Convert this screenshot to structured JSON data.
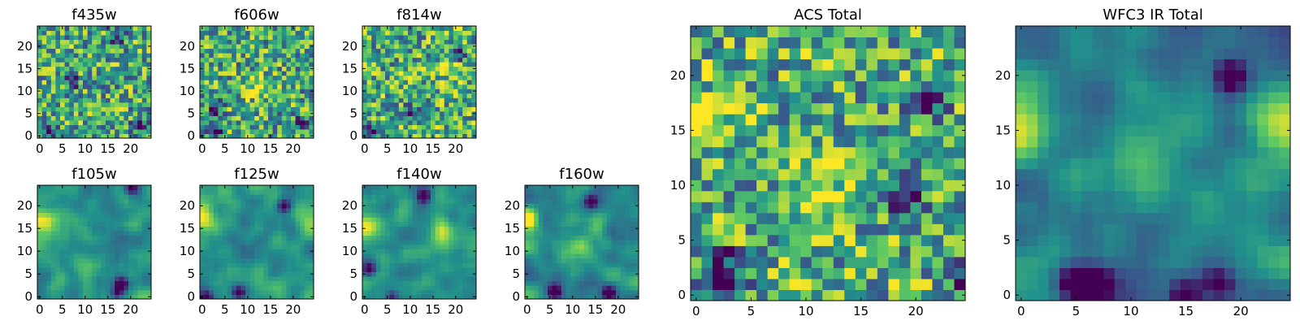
{
  "figure": {
    "colormap": "viridis",
    "colormap_stops": [
      "#440154",
      "#3b528b",
      "#21918c",
      "#5ec962",
      "#fde725"
    ]
  },
  "chart_data": [
    {
      "type": "heatmap",
      "title": "f435w",
      "grid_size": 25,
      "xticks": [
        0,
        5,
        10,
        15,
        20
      ],
      "yticks": [
        0,
        5,
        10,
        15,
        20
      ],
      "xlim": [
        0,
        25
      ],
      "ylim": [
        0,
        25
      ],
      "grid": false,
      "texture": "noisy",
      "mean_level": 0.6,
      "hotspots": [],
      "lowspots": [
        [
          3,
          1,
          0.3
        ],
        [
          22,
          2,
          0.3
        ],
        [
          7,
          12,
          0.3
        ],
        [
          17,
          22,
          0.3
        ]
      ]
    },
    {
      "type": "heatmap",
      "title": "f606w",
      "grid_size": 25,
      "xticks": [
        0,
        5,
        10,
        15,
        20
      ],
      "yticks": [
        0,
        5,
        10,
        15,
        20
      ],
      "xlim": [
        0,
        25
      ],
      "ylim": [
        0,
        25
      ],
      "grid": false,
      "texture": "noisy",
      "mean_level": 0.6,
      "hotspots": [
        [
          11,
          11,
          0.15
        ]
      ],
      "lowspots": [
        [
          3,
          1,
          0.35
        ],
        [
          3,
          6,
          0.3
        ],
        [
          22,
          3,
          0.3
        ]
      ]
    },
    {
      "type": "heatmap",
      "title": "f814w",
      "grid_size": 25,
      "xticks": [
        0,
        5,
        10,
        15,
        20
      ],
      "yticks": [
        0,
        5,
        10,
        15,
        20
      ],
      "xlim": [
        0,
        25
      ],
      "ylim": [
        0,
        25
      ],
      "grid": false,
      "texture": "noisy",
      "mean_level": 0.62,
      "hotspots": [
        [
          20,
          15,
          0.2
        ]
      ],
      "lowspots": [
        [
          1,
          1,
          0.3
        ],
        [
          10,
          5,
          0.3
        ],
        [
          21,
          18,
          0.3
        ]
      ]
    },
    {
      "type": "heatmap",
      "title": "f105w",
      "grid_size": 25,
      "xticks": [
        0,
        5,
        10,
        15,
        20
      ],
      "yticks": [
        0,
        5,
        10,
        15,
        20
      ],
      "xlim": [
        0,
        25
      ],
      "ylim": [
        0,
        25
      ],
      "grid": false,
      "texture": "smooth",
      "mean_level": 0.5,
      "hotspots": [
        [
          0,
          17,
          0.35
        ]
      ],
      "lowspots": [
        [
          18,
          3,
          0.35
        ],
        [
          17,
          1,
          0.3
        ],
        [
          20,
          24,
          0.3
        ]
      ]
    },
    {
      "type": "heatmap",
      "title": "f125w",
      "grid_size": 25,
      "xticks": [
        0,
        5,
        10,
        15,
        20
      ],
      "yticks": [
        0,
        5,
        10,
        15,
        20
      ],
      "xlim": [
        0,
        25
      ],
      "ylim": [
        0,
        25
      ],
      "grid": false,
      "texture": "smooth",
      "mean_level": 0.5,
      "hotspots": [
        [
          0,
          17,
          0.35
        ],
        [
          24,
          16,
          0.25
        ]
      ],
      "lowspots": [
        [
          8,
          1,
          0.35
        ],
        [
          18,
          20,
          0.3
        ],
        [
          1,
          0,
          0.3
        ]
      ]
    },
    {
      "type": "heatmap",
      "title": "f140w",
      "grid_size": 25,
      "xticks": [
        0,
        5,
        10,
        15,
        20
      ],
      "yticks": [
        0,
        5,
        10,
        15,
        20
      ],
      "xlim": [
        0,
        25
      ],
      "ylim": [
        0,
        25
      ],
      "grid": false,
      "texture": "smooth",
      "mean_level": 0.5,
      "hotspots": [
        [
          0,
          16,
          0.3
        ],
        [
          17,
          15,
          0.25
        ]
      ],
      "lowspots": [
        [
          1,
          6,
          0.35
        ],
        [
          13,
          22,
          0.3
        ],
        [
          6,
          0,
          0.3
        ]
      ]
    },
    {
      "type": "heatmap",
      "title": "f160w",
      "grid_size": 25,
      "xticks": [
        0,
        5,
        10,
        15,
        20
      ],
      "yticks": [
        0,
        5,
        10,
        15,
        20
      ],
      "xlim": [
        0,
        25
      ],
      "ylim": [
        0,
        25
      ],
      "grid": false,
      "texture": "smooth",
      "mean_level": 0.48,
      "hotspots": [
        [
          0,
          17,
          0.35
        ],
        [
          12,
          11,
          0.2
        ]
      ],
      "lowspots": [
        [
          6,
          1,
          0.4
        ],
        [
          18,
          1,
          0.3
        ],
        [
          14,
          21,
          0.3
        ]
      ]
    },
    {
      "type": "heatmap",
      "title": "ACS Total",
      "grid_size": 25,
      "xticks": [
        0,
        5,
        10,
        15,
        20
      ],
      "yticks": [
        0,
        5,
        10,
        15,
        20
      ],
      "xlim": [
        0,
        25
      ],
      "ylim": [
        0,
        25
      ],
      "grid": false,
      "texture": "noisy",
      "mean_level": 0.62,
      "hotspots": [
        [
          11,
          10,
          0.2
        ],
        [
          1,
          16,
          0.2
        ]
      ],
      "lowspots": [
        [
          3,
          1,
          0.3
        ],
        [
          2,
          3,
          0.3
        ],
        [
          19,
          9,
          0.3
        ],
        [
          21,
          18,
          0.3
        ],
        [
          24,
          2,
          0.3
        ]
      ]
    },
    {
      "type": "heatmap",
      "title": "WFC3 IR Total",
      "grid_size": 25,
      "xticks": [
        0,
        5,
        10,
        15,
        20
      ],
      "yticks": [
        0,
        5,
        10,
        15,
        20
      ],
      "xlim": [
        0,
        25
      ],
      "ylim": [
        0,
        25
      ],
      "grid": false,
      "texture": "smooth",
      "mean_level": 0.42,
      "hotspots": [
        [
          0,
          15,
          0.35
        ],
        [
          24,
          16,
          0.3
        ],
        [
          12,
          12,
          0.2
        ]
      ],
      "lowspots": [
        [
          5,
          1,
          0.4
        ],
        [
          7,
          1,
          0.35
        ],
        [
          18,
          1,
          0.3
        ],
        [
          19,
          20,
          0.3
        ],
        [
          15,
          0,
          0.3
        ]
      ]
    }
  ]
}
